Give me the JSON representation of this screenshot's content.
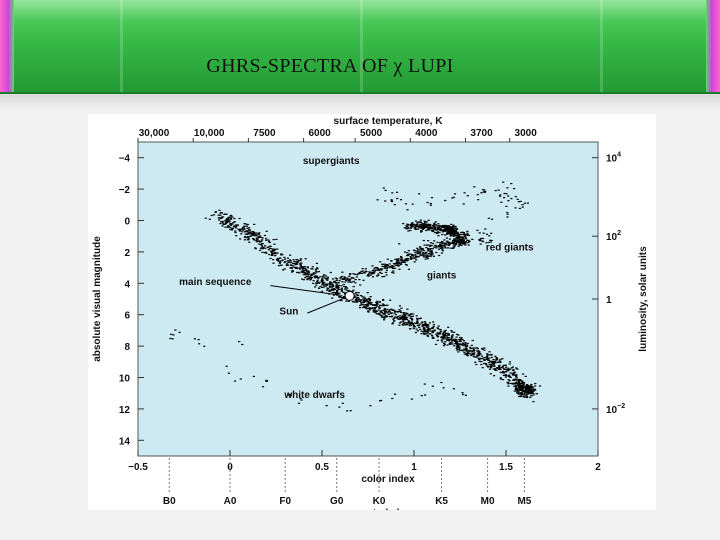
{
  "slide": {
    "title": "GHRS-SPECTRA OF χ LUPI"
  },
  "colors": {
    "banner_green": "#36b947",
    "banner_edge_pink": "#ff66cc",
    "plot_background": "#cdeaf2",
    "points": "#000000"
  },
  "chart_data": {
    "type": "scatter",
    "title": "",
    "xlabel": "color index",
    "ylabel": "absolute visual magnitude",
    "top_axis_label": "surface temperature, K",
    "top_ticks": [
      "30,000",
      "10,000",
      "7500",
      "6000",
      "5000",
      "4000",
      "3700",
      "3000"
    ],
    "top_tick_positions": [
      -0.5,
      -0.2,
      0.1,
      0.4,
      0.68,
      0.98,
      1.28,
      1.52
    ],
    "right_axis_label": "luminosity, solar units",
    "right_ticks": [
      {
        "label": "10",
        "exp": "4",
        "y": -4
      },
      {
        "label": "10",
        "exp": "2",
        "y": 1
      },
      {
        "label": "1",
        "exp": "",
        "y": 5
      },
      {
        "label": "10",
        "exp": "−2",
        "y": 12
      }
    ],
    "x_ticks": [
      "−0.5",
      "0",
      "0.5",
      "1",
      "1.5",
      "2"
    ],
    "x_tick_values": [
      -0.5,
      0,
      0.5,
      1,
      1.5,
      2
    ],
    "y_ticks": [
      "−4",
      "−2",
      "0",
      "2",
      "4",
      "6",
      "8",
      "10",
      "12",
      "14"
    ],
    "y_tick_values": [
      -4,
      -2,
      0,
      2,
      4,
      6,
      8,
      10,
      12,
      14
    ],
    "xlim": [
      -0.5,
      2
    ],
    "ylim": [
      15,
      -5
    ],
    "y_inverted": true,
    "bottom_axis_label": "spectral class",
    "spectral_classes": [
      {
        "label": "B0",
        "x": -0.33
      },
      {
        "label": "A0",
        "x": 0.0
      },
      {
        "label": "F0",
        "x": 0.3
      },
      {
        "label": "G0",
        "x": 0.58
      },
      {
        "label": "K0",
        "x": 0.81
      },
      {
        "label": "K5",
        "x": 1.15
      },
      {
        "label": "M0",
        "x": 1.4
      },
      {
        "label": "M5",
        "x": 1.6
      }
    ],
    "annotations": [
      {
        "text": "supergiants",
        "x": 0.55,
        "y": -3.6
      },
      {
        "text": "red giants",
        "x": 1.52,
        "y": 1.9
      },
      {
        "text": "giants",
        "x": 1.15,
        "y": 3.7
      },
      {
        "text": "main sequence",
        "x": -0.08,
        "y": 4.1
      },
      {
        "text": "Sun",
        "x": 0.32,
        "y": 6.0
      },
      {
        "text": "white dwarfs",
        "x": 0.46,
        "y": 11.3
      }
    ],
    "sun": {
      "x": 0.65,
      "y": 4.8
    },
    "regions": [
      {
        "name": "main sequence",
        "points": [
          [
            -0.08,
            -0.4
          ],
          [
            0.1,
            0.8
          ],
          [
            0.3,
            2.5
          ],
          [
            0.45,
            3.5
          ],
          [
            0.6,
            4.5
          ],
          [
            0.75,
            5.3
          ],
          [
            0.9,
            6.0
          ],
          [
            1.05,
            6.8
          ],
          [
            1.2,
            7.6
          ],
          [
            1.35,
            8.5
          ],
          [
            1.5,
            9.6
          ],
          [
            1.6,
            10.8
          ]
        ],
        "count": 1500,
        "spread": 0.9
      },
      {
        "name": "giants",
        "points": [
          [
            0.6,
            3.8
          ],
          [
            0.8,
            3.2
          ],
          [
            0.95,
            2.5
          ],
          [
            1.1,
            1.8
          ],
          [
            1.25,
            1.2
          ]
        ],
        "count": 450,
        "spread": 0.8
      },
      {
        "name": "red giant clump",
        "points": [
          [
            0.95,
            0.4
          ],
          [
            1.05,
            0.3
          ],
          [
            1.15,
            0.5
          ],
          [
            1.2,
            0.6
          ]
        ],
        "count": 350,
        "spread": 0.55
      },
      {
        "name": "supergiants",
        "points": [
          [
            0.8,
            -1.5
          ],
          [
            1.1,
            -1.2
          ],
          [
            1.45,
            -2.0
          ],
          [
            1.6,
            -1.0
          ],
          [
            0.9,
            2.0
          ],
          [
            1.4,
            1.0
          ]
        ],
        "count": 110,
        "spread": 1.0
      },
      {
        "name": "white dwarfs",
        "points": [
          [
            -0.2,
            6.8
          ],
          [
            0.0,
            10.0
          ],
          [
            0.2,
            10.3
          ],
          [
            0.4,
            11.6
          ],
          [
            0.7,
            12.0
          ],
          [
            1.0,
            11.0
          ],
          [
            1.3,
            10.8
          ],
          [
            -0.3,
            7.2
          ]
        ],
        "count": 45,
        "spread": 0.7
      }
    ]
  }
}
